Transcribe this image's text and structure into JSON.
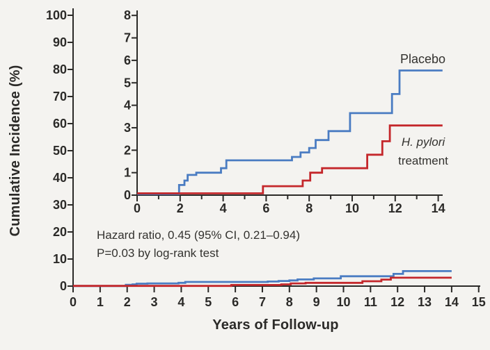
{
  "figure": {
    "background_color": "#f4f3f0",
    "axis_color": "#2b2a28",
    "text_color": "#33322f",
    "y_axis_title": "Cumulative Incidence (%)",
    "x_axis_title": "Years of Follow-up",
    "annotations": {
      "placebo_label": "Placebo",
      "treatment_label_line1": "H. pylori",
      "treatment_label_line2": "treatment",
      "hazard_ratio_line": "Hazard ratio, 0.45 (95% CI, 0.21–0.94)",
      "pvalue_line": "P=0.03 by log-rank test"
    }
  },
  "chart_data": [
    {
      "id": "main",
      "type": "line",
      "subtype": "step",
      "title": "",
      "xlabel": "Years of Follow-up",
      "ylabel": "Cumulative Incidence (%)",
      "xlim": [
        0,
        15
      ],
      "ylim": [
        0,
        100
      ],
      "grid": false,
      "x_ticks_major": [
        0,
        1,
        2,
        3,
        4,
        5,
        6,
        7,
        8,
        9,
        10,
        11,
        12,
        13,
        14,
        15
      ],
      "x_ticks_minor": [],
      "y_ticks": [
        0,
        10,
        20,
        30,
        40,
        50,
        60,
        70,
        80,
        90,
        100
      ],
      "series": [
        {
          "name": "Placebo",
          "color": "#4a7cc2",
          "end_x": 14.0,
          "steps": [
            [
              0,
              0.05
            ],
            [
              1.95,
              0.45
            ],
            [
              2.2,
              0.65
            ],
            [
              2.35,
              0.9
            ],
            [
              2.75,
              1.0
            ],
            [
              3.9,
              1.2
            ],
            [
              4.15,
              1.55
            ],
            [
              7.2,
              1.7
            ],
            [
              7.6,
              1.9
            ],
            [
              8.0,
              2.1
            ],
            [
              8.3,
              2.45
            ],
            [
              8.9,
              2.85
            ],
            [
              9.9,
              3.65
            ],
            [
              11.85,
              4.5
            ],
            [
              12.2,
              5.55
            ]
          ]
        },
        {
          "name": "H. pylori treatment",
          "color": "#c4272b",
          "end_x": 14.0,
          "steps": [
            [
              0,
              0.08
            ],
            [
              5.85,
              0.4
            ],
            [
              7.7,
              0.65
            ],
            [
              8.05,
              1.0
            ],
            [
              8.6,
              1.2
            ],
            [
              10.7,
              1.8
            ],
            [
              11.4,
              2.4
            ],
            [
              11.75,
              3.1
            ]
          ]
        }
      ]
    },
    {
      "id": "inset",
      "type": "line",
      "subtype": "step",
      "title": "",
      "xlabel": "",
      "ylabel": "",
      "xlim": [
        0,
        14
      ],
      "ylim": [
        0,
        8
      ],
      "grid": false,
      "x_ticks_major": [
        0,
        2,
        4,
        6,
        8,
        10,
        12,
        14
      ],
      "x_ticks_minor": [
        1,
        3,
        5,
        7,
        9,
        11,
        13
      ],
      "y_ticks": [
        0,
        1,
        2,
        3,
        4,
        5,
        6,
        7,
        8
      ],
      "series": [
        {
          "name": "Placebo",
          "color": "#4a7cc2",
          "end_x": 14.2,
          "steps": [
            [
              0,
              0.05
            ],
            [
              1.95,
              0.45
            ],
            [
              2.2,
              0.65
            ],
            [
              2.35,
              0.9
            ],
            [
              2.75,
              1.0
            ],
            [
              3.9,
              1.2
            ],
            [
              4.15,
              1.55
            ],
            [
              7.2,
              1.7
            ],
            [
              7.6,
              1.9
            ],
            [
              8.0,
              2.1
            ],
            [
              8.3,
              2.45
            ],
            [
              8.9,
              2.85
            ],
            [
              9.9,
              3.65
            ],
            [
              11.85,
              4.5
            ],
            [
              12.2,
              5.55
            ]
          ]
        },
        {
          "name": "H. pylori treatment",
          "color": "#c4272b",
          "end_x": 14.2,
          "steps": [
            [
              0,
              0.08
            ],
            [
              5.85,
              0.4
            ],
            [
              7.7,
              0.65
            ],
            [
              8.05,
              1.0
            ],
            [
              8.6,
              1.2
            ],
            [
              10.7,
              1.8
            ],
            [
              11.4,
              2.4
            ],
            [
              11.75,
              3.1
            ]
          ]
        }
      ]
    }
  ]
}
